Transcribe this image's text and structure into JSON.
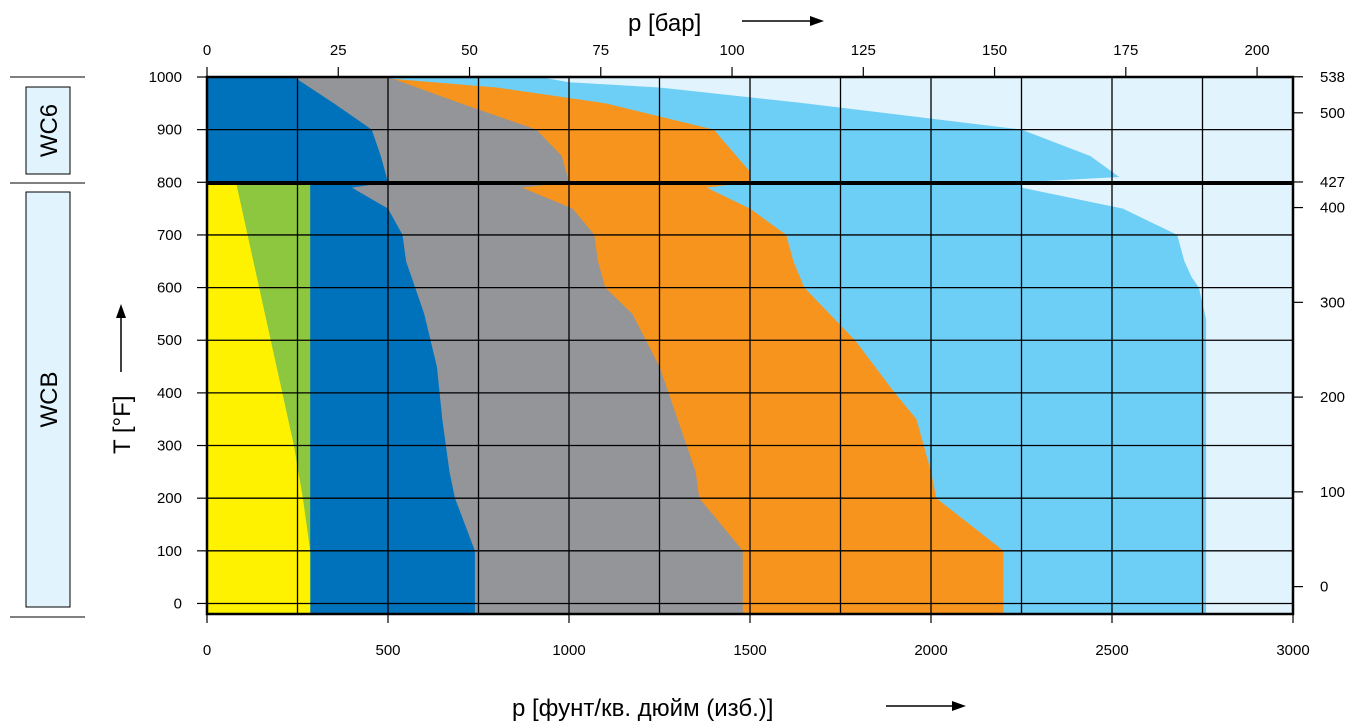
{
  "chart_data": {
    "type": "area",
    "x_bottom_label": "p [фунт/кв. дюйм (изб.)]",
    "x_top_label": "p [бар]",
    "y_left_label": "T [°F]",
    "x_range_psi": [
      0,
      3000
    ],
    "y_range_F": [
      -20,
      1000
    ],
    "x_bottom_ticks": [
      "0",
      "500",
      "1000",
      "1500",
      "2000",
      "2500",
      "3000"
    ],
    "x_bottom_tick_values": [
      0,
      500,
      1000,
      1500,
      2000,
      2500,
      3000
    ],
    "x_top_ticks": [
      "0",
      "25",
      "50",
      "75",
      "100",
      "125",
      "150",
      "175",
      "200"
    ],
    "x_top_tick_values_bar": [
      0,
      25,
      50,
      75,
      100,
      125,
      150,
      175,
      200
    ],
    "y_left_ticks": [
      "0",
      "100",
      "200",
      "300",
      "400",
      "500",
      "600",
      "700",
      "800",
      "900",
      "1000"
    ],
    "y_left_tick_values": [
      0,
      100,
      200,
      300,
      400,
      500,
      600,
      700,
      800,
      900,
      1000
    ],
    "y_right_ticks": [
      "0",
      "100",
      "200",
      "300",
      "400",
      "427",
      "500",
      "538"
    ],
    "y_right_tick_values_C": [
      0,
      100,
      200,
      300,
      400,
      427,
      500,
      538
    ],
    "grades": [
      {
        "label": "WC6",
        "range_F": [
          800,
          1000
        ]
      },
      {
        "label": "WCB",
        "range_F": [
          -20,
          800
        ]
      }
    ],
    "grade_boundary_F": 800,
    "grid": true,
    "series": [
      {
        "color": "#6ecff6",
        "points": [
          [
            0,
            -20
          ],
          [
            2760,
            -20
          ],
          [
            2760,
            540
          ],
          [
            2740,
            600
          ],
          [
            2720,
            620
          ],
          [
            2700,
            650
          ],
          [
            2680,
            700
          ],
          [
            2530,
            750
          ],
          [
            2250,
            790
          ],
          [
            2250,
            800
          ],
          [
            2520,
            810
          ],
          [
            2440,
            850
          ],
          [
            2250,
            900
          ],
          [
            1650,
            950
          ],
          [
            1250,
            980
          ],
          [
            1000,
            990
          ],
          [
            920,
            1000
          ],
          [
            0,
            1000
          ]
        ]
      },
      {
        "color": "#f7941d",
        "points": [
          [
            0,
            -20
          ],
          [
            2200,
            -20
          ],
          [
            2200,
            100
          ],
          [
            2015,
            200
          ],
          [
            2000,
            250
          ],
          [
            1960,
            350
          ],
          [
            1900,
            400
          ],
          [
            1790,
            500
          ],
          [
            1650,
            600
          ],
          [
            1620,
            650
          ],
          [
            1600,
            700
          ],
          [
            1500,
            750
          ],
          [
            1380,
            790
          ],
          [
            1500,
            800
          ],
          [
            1500,
            820
          ],
          [
            1400,
            900
          ],
          [
            1100,
            950
          ],
          [
            800,
            980
          ],
          [
            450,
            1000
          ],
          [
            0,
            1000
          ]
        ]
      },
      {
        "color": "#939598",
        "points": [
          [
            0,
            -20
          ],
          [
            1480,
            -20
          ],
          [
            1480,
            100
          ],
          [
            1360,
            200
          ],
          [
            1350,
            250
          ],
          [
            1300,
            350
          ],
          [
            1250,
            450
          ],
          [
            1175,
            550
          ],
          [
            1100,
            600
          ],
          [
            1080,
            650
          ],
          [
            1070,
            700
          ],
          [
            1010,
            750
          ],
          [
            870,
            790
          ],
          [
            1000,
            800
          ],
          [
            980,
            850
          ],
          [
            910,
            900
          ],
          [
            700,
            950
          ],
          [
            500,
            1000
          ],
          [
            0,
            1000
          ]
        ]
      },
      {
        "color": "#0072bc",
        "points": [
          [
            0,
            -20
          ],
          [
            740,
            -20
          ],
          [
            740,
            100
          ],
          [
            685,
            200
          ],
          [
            670,
            250
          ],
          [
            650,
            350
          ],
          [
            635,
            450
          ],
          [
            600,
            550
          ],
          [
            550,
            650
          ],
          [
            540,
            700
          ],
          [
            500,
            750
          ],
          [
            400,
            790
          ],
          [
            500,
            800
          ],
          [
            480,
            850
          ],
          [
            455,
            900
          ],
          [
            350,
            950
          ],
          [
            240,
            1000
          ],
          [
            0,
            1000
          ]
        ]
      },
      {
        "color": "#8dc63f",
        "points": [
          [
            0,
            -20
          ],
          [
            285,
            -20
          ],
          [
            285,
            800
          ],
          [
            0,
            800
          ]
        ]
      },
      {
        "color": "#fff200",
        "points": [
          [
            0,
            -20
          ],
          [
            285,
            -20
          ],
          [
            285,
            100
          ],
          [
            265,
            200
          ],
          [
            240,
            300
          ],
          [
            80,
            800
          ],
          [
            0,
            800
          ]
        ]
      }
    ]
  }
}
